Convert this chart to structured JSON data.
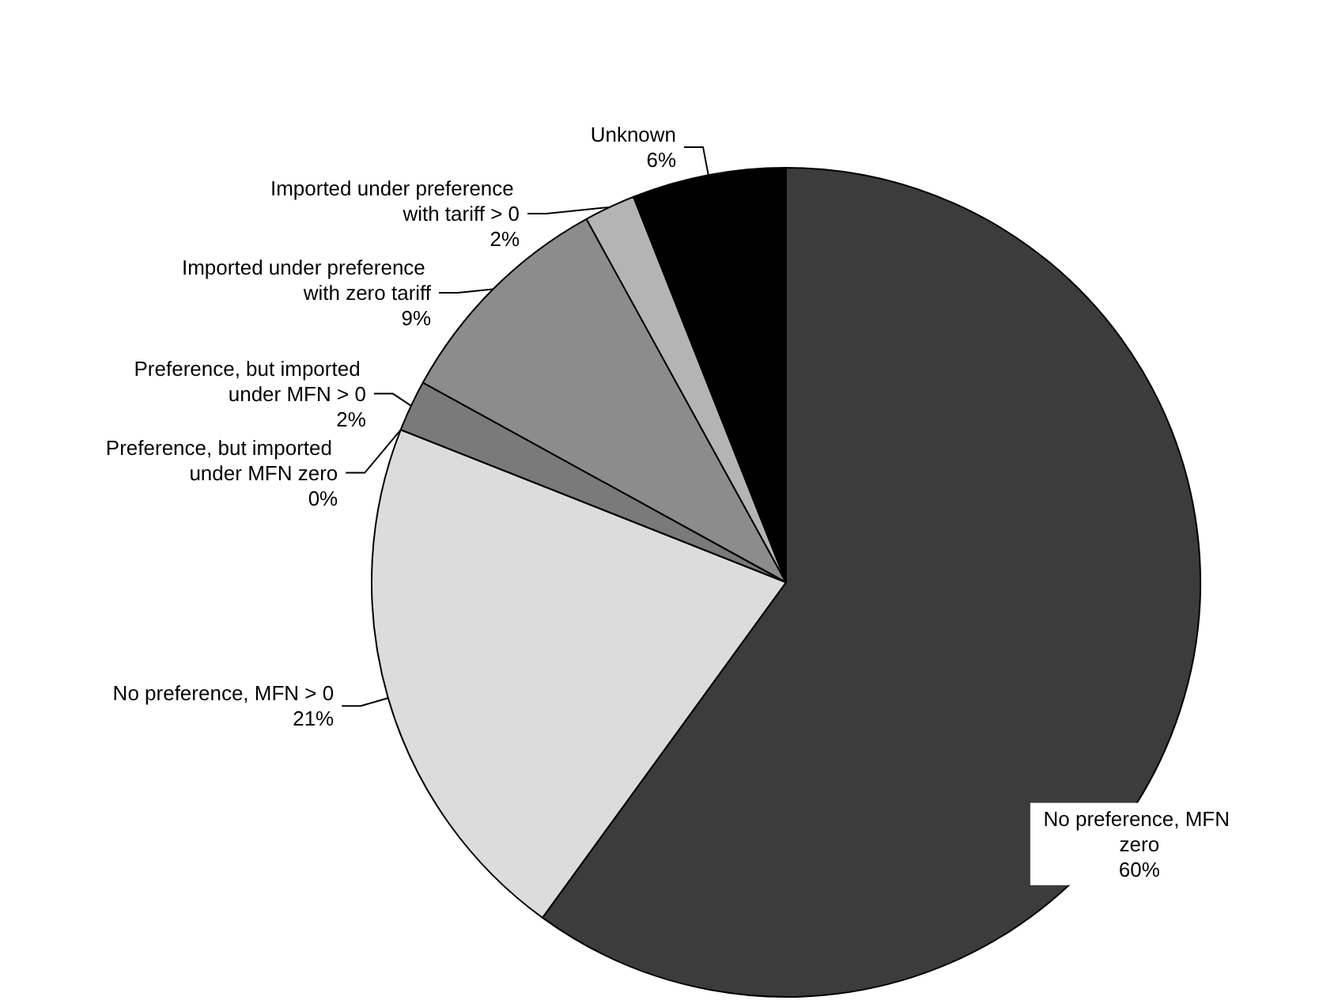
{
  "chart_data": {
    "type": "pie",
    "categories": [
      "No preference, MFN zero",
      "No preference, MFN > 0",
      "Preference, but imported under MFN zero",
      "Preference, but imported under MFN > 0",
      "Imported under preference with zero tariff",
      "Imported under preference with tariff > 0",
      "Unknown"
    ],
    "values": [
      60,
      21,
      0,
      2,
      9,
      2,
      6
    ],
    "value_labels": [
      "60%",
      "21%",
      "0%",
      "2%",
      "9%",
      "2%",
      "6%"
    ],
    "colors": [
      "#3c3c3c",
      "#dcdcdc",
      "#c8c8c8",
      "#7a7a7a",
      "#8c8c8c",
      "#b4b4b4",
      "#000000"
    ]
  }
}
